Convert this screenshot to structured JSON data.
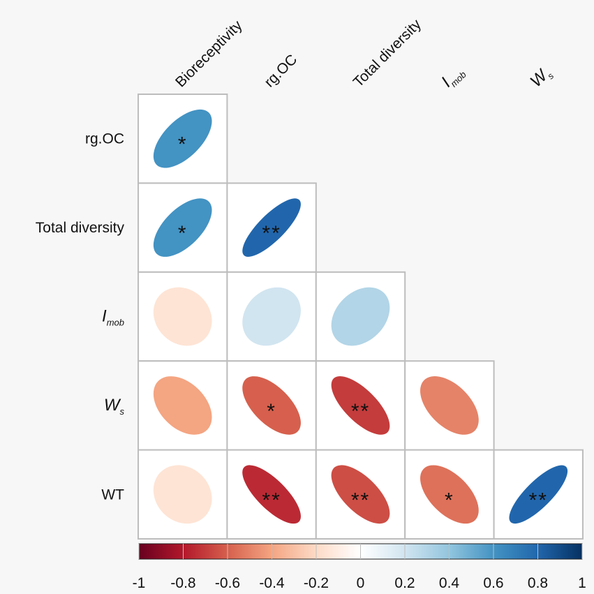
{
  "chart_data": {
    "type": "heatmap",
    "variant": "correlation-ellipse-lower-triangle",
    "column_labels": [
      {
        "main": "Bioreceptivity",
        "sub": ""
      },
      {
        "main": "rg.OC",
        "sub": ""
      },
      {
        "main": "Total diversity",
        "sub": ""
      },
      {
        "main": "I",
        "sub": "mob"
      },
      {
        "main": "W",
        "sub": "s"
      }
    ],
    "row_labels": [
      {
        "main": "rg.OC",
        "sub": ""
      },
      {
        "main": "Total diversity",
        "sub": ""
      },
      {
        "main": "I",
        "sub": "mob"
      },
      {
        "main": "W",
        "sub": "s"
      },
      {
        "main": "WT",
        "sub": ""
      }
    ],
    "cells": [
      {
        "row": 0,
        "col": 0,
        "value": 0.6,
        "sig": "*"
      },
      {
        "row": 1,
        "col": 0,
        "value": 0.6,
        "sig": "*"
      },
      {
        "row": 1,
        "col": 1,
        "value": 0.8,
        "sig": "**"
      },
      {
        "row": 2,
        "col": 0,
        "value": -0.15,
        "sig": ""
      },
      {
        "row": 2,
        "col": 1,
        "value": 0.2,
        "sig": ""
      },
      {
        "row": 2,
        "col": 2,
        "value": 0.3,
        "sig": ""
      },
      {
        "row": 3,
        "col": 0,
        "value": -0.4,
        "sig": ""
      },
      {
        "row": 3,
        "col": 1,
        "value": -0.6,
        "sig": "*"
      },
      {
        "row": 3,
        "col": 2,
        "value": -0.7,
        "sig": "**"
      },
      {
        "row": 3,
        "col": 3,
        "value": -0.5,
        "sig": ""
      },
      {
        "row": 4,
        "col": 0,
        "value": -0.15,
        "sig": ""
      },
      {
        "row": 4,
        "col": 1,
        "value": -0.75,
        "sig": "**"
      },
      {
        "row": 4,
        "col": 2,
        "value": -0.65,
        "sig": "**"
      },
      {
        "row": 4,
        "col": 3,
        "value": -0.55,
        "sig": "*"
      },
      {
        "row": 4,
        "col": 4,
        "value": 0.8,
        "sig": "**"
      }
    ],
    "colorbar": {
      "range": [
        -1,
        1
      ],
      "ticks": [
        "-1",
        "-0.8",
        "-0.6",
        "-0.4",
        "-0.2",
        "0",
        "0.2",
        "0.4",
        "0.6",
        "0.8",
        "1"
      ],
      "colors": [
        "#67001f",
        "#b2182b",
        "#d6604d",
        "#f4a582",
        "#fddbc7",
        "#ffffff",
        "#d1e5f0",
        "#92c5de",
        "#4393c3",
        "#2166ac",
        "#053061"
      ]
    }
  }
}
